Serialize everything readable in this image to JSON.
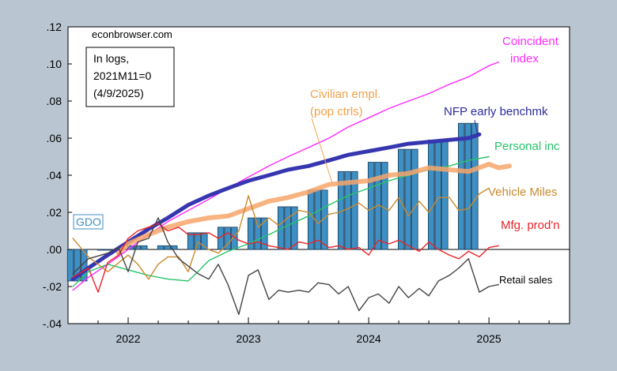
{
  "chart_data": {
    "type": "line",
    "source_label": "econbrowser.com",
    "note_lines": [
      "In logs,",
      "2021M11=0",
      "(4/9/2025)"
    ],
    "y_ticks": [
      ".12",
      ".10",
      ".08",
      ".06",
      ".04",
      ".02",
      ".00",
      "-.02",
      "-.04"
    ],
    "ylim": [
      -0.04,
      0.12
    ],
    "x_ticks": [
      "2022",
      "2023",
      "2024",
      "2025"
    ],
    "x_tick_values": [
      2022,
      2023,
      2024,
      2025
    ],
    "xlim": [
      2021.5,
      2025.67
    ],
    "series": [
      {
        "name": "Coincident index",
        "label_lines": [
          "Coincident",
          "index"
        ],
        "color": "#ff2bff",
        "style": "line",
        "x": [
          2021.54,
          2021.67,
          2021.83,
          2022.0,
          2022.17,
          2022.33,
          2022.5,
          2022.67,
          2022.83,
          2023.0,
          2023.17,
          2023.33,
          2023.5,
          2023.67,
          2023.83,
          2024.0,
          2024.17,
          2024.33,
          2024.5,
          2024.67,
          2024.83,
          2025.0,
          2025.08
        ],
        "values": [
          -0.022,
          -0.015,
          -0.008,
          0.0,
          0.008,
          0.015,
          0.021,
          0.027,
          0.033,
          0.039,
          0.045,
          0.05,
          0.055,
          0.06,
          0.066,
          0.071,
          0.076,
          0.08,
          0.084,
          0.089,
          0.093,
          0.099,
          0.101
        ]
      },
      {
        "name": "NFP early benchmk",
        "label_lines": [
          "NFP early benchmk"
        ],
        "color": "#3636b0",
        "style": "thick",
        "x": [
          2021.54,
          2021.67,
          2021.83,
          2022.0,
          2022.17,
          2022.33,
          2022.5,
          2022.67,
          2022.83,
          2023.0,
          2023.17,
          2023.33,
          2023.5,
          2023.67,
          2023.83,
          2024.0,
          2024.17,
          2024.33,
          2024.5,
          2024.67,
          2024.83,
          2024.92
        ],
        "values": [
          -0.016,
          -0.01,
          -0.003,
          0.004,
          0.011,
          0.017,
          0.024,
          0.029,
          0.033,
          0.037,
          0.04,
          0.043,
          0.045,
          0.048,
          0.051,
          0.053,
          0.055,
          0.057,
          0.058,
          0.059,
          0.06,
          0.062
        ]
      },
      {
        "name": "Personal inc",
        "label_lines": [
          "Personal inc"
        ],
        "color": "#27c46a",
        "style": "line",
        "x": [
          2021.54,
          2021.67,
          2021.83,
          2022.0,
          2022.17,
          2022.33,
          2022.5,
          2022.58,
          2022.67,
          2022.83,
          2023.0,
          2023.17,
          2023.33,
          2023.5,
          2023.67,
          2023.83,
          2024.0,
          2024.17,
          2024.33,
          2024.5,
          2024.67,
          2024.83,
          2025.0
        ],
        "values": [
          -0.02,
          -0.012,
          -0.008,
          -0.011,
          -0.014,
          -0.016,
          -0.017,
          -0.012,
          -0.006,
          -0.001,
          0.003,
          0.008,
          0.013,
          0.018,
          0.024,
          0.029,
          0.033,
          0.037,
          0.04,
          0.043,
          0.045,
          0.048,
          0.05
        ]
      },
      {
        "name": "Civilian empl. (pop ctrls)",
        "label_lines": [
          "Civilian empl.",
          "(pop ctrls)"
        ],
        "color": "#f7a66b",
        "style": "band",
        "x": [
          2021.92,
          2022.0,
          2022.17,
          2022.33,
          2022.5,
          2022.67,
          2022.83,
          2023.0,
          2023.17,
          2023.33,
          2023.5,
          2023.67,
          2023.83,
          2024.0,
          2024.17,
          2024.33,
          2024.5,
          2024.67,
          2024.83,
          2025.0,
          2025.08,
          2025.17
        ],
        "values": [
          -0.002,
          0.003,
          0.008,
          0.012,
          0.015,
          0.017,
          0.018,
          0.022,
          0.026,
          0.028,
          0.031,
          0.035,
          0.036,
          0.037,
          0.04,
          0.041,
          0.044,
          0.043,
          0.042,
          0.046,
          0.044,
          0.045
        ]
      },
      {
        "name": "Vehicle Miles",
        "label_lines": [
          "Vehicle Miles"
        ],
        "color": "#c98a2e",
        "style": "line",
        "x": [
          2021.54,
          2021.67,
          2021.83,
          2022.0,
          2022.08,
          2022.17,
          2022.25,
          2022.33,
          2022.42,
          2022.5,
          2022.58,
          2022.67,
          2022.75,
          2022.83,
          2022.92,
          2023.0,
          2023.08,
          2023.17,
          2023.25,
          2023.33,
          2023.42,
          2023.5,
          2023.58,
          2023.67,
          2023.75,
          2023.83,
          2023.92,
          2024.0,
          2024.08,
          2024.17,
          2024.25,
          2024.33,
          2024.42,
          2024.5,
          2024.58,
          2024.67,
          2024.75,
          2024.83,
          2024.92,
          2025.0
        ],
        "values": [
          0.006,
          -0.004,
          -0.012,
          -0.003,
          -0.008,
          -0.016,
          -0.008,
          -0.004,
          -0.004,
          -0.012,
          0.004,
          0.0,
          -0.002,
          0.003,
          0.01,
          0.029,
          0.012,
          0.017,
          0.013,
          0.017,
          0.021,
          0.02,
          0.014,
          0.019,
          0.02,
          0.022,
          0.025,
          0.021,
          0.024,
          0.021,
          0.028,
          0.018,
          0.026,
          0.02,
          0.028,
          0.028,
          0.021,
          0.022,
          0.03,
          0.033
        ]
      },
      {
        "name": "Mfg. prod'n",
        "label_lines": [
          "Mfg. prod'n"
        ],
        "color": "#e8262a",
        "style": "line",
        "x": [
          2021.54,
          2021.67,
          2021.75,
          2021.83,
          2021.92,
          2022.0,
          2022.08,
          2022.17,
          2022.25,
          2022.33,
          2022.42,
          2022.5,
          2022.58,
          2022.67,
          2022.75,
          2022.83,
          2022.92,
          2023.0,
          2023.08,
          2023.17,
          2023.25,
          2023.33,
          2023.42,
          2023.5,
          2023.58,
          2023.67,
          2023.75,
          2023.83,
          2023.92,
          2024.0,
          2024.08,
          2024.17,
          2024.25,
          2024.33,
          2024.42,
          2024.5,
          2024.58,
          2024.67,
          2024.75,
          2024.83,
          2024.92,
          2025.0,
          2025.08
        ],
        "values": [
          -0.015,
          -0.01,
          -0.023,
          -0.007,
          -0.003,
          0.006,
          0.01,
          0.012,
          0.014,
          0.01,
          0.012,
          0.008,
          0.008,
          0.009,
          0.006,
          0.009,
          0.005,
          0.003,
          0.004,
          0.002,
          0.001,
          0.0,
          0.004,
          0.003,
          0.005,
          0.001,
          0.002,
          0.0,
          0.001,
          -0.003,
          0.005,
          0.003,
          0.005,
          0.002,
          -0.001,
          0.004,
          0.0,
          -0.003,
          -0.005,
          -0.001,
          -0.004,
          0.001,
          0.002
        ]
      },
      {
        "name": "Retail sales",
        "label_lines": [
          "Retail sales"
        ],
        "color": "#444444",
        "style": "line",
        "x": [
          2021.54,
          2021.67,
          2021.83,
          2021.92,
          2022.0,
          2022.08,
          2022.17,
          2022.25,
          2022.33,
          2022.42,
          2022.5,
          2022.58,
          2022.67,
          2022.75,
          2022.83,
          2022.92,
          2023.0,
          2023.08,
          2023.17,
          2023.25,
          2023.33,
          2023.42,
          2023.5,
          2023.58,
          2023.67,
          2023.75,
          2023.83,
          2023.92,
          2024.0,
          2024.08,
          2024.17,
          2024.25,
          2024.33,
          2024.42,
          2024.5,
          2024.58,
          2024.67,
          2024.75,
          2024.83,
          2024.92,
          2025.0,
          2025.08
        ],
        "values": [
          -0.013,
          -0.005,
          -0.002,
          0.001,
          -0.012,
          0.004,
          0.006,
          0.017,
          0.004,
          -0.005,
          -0.009,
          -0.013,
          -0.016,
          -0.008,
          -0.019,
          -0.035,
          -0.014,
          -0.011,
          -0.027,
          -0.022,
          -0.023,
          -0.022,
          -0.023,
          -0.018,
          -0.019,
          -0.024,
          -0.02,
          -0.033,
          -0.026,
          -0.024,
          -0.029,
          -0.02,
          -0.026,
          -0.021,
          -0.025,
          -0.017,
          -0.014,
          -0.01,
          -0.005,
          -0.023,
          -0.02,
          -0.019
        ]
      },
      {
        "name": "GDO",
        "label_lines": [
          "GDO"
        ],
        "color": "#3d8fc4",
        "style": "bar",
        "x": [
          2021.58,
          2021.83,
          2022.08,
          2022.33,
          2022.58,
          2022.83,
          2023.08,
          2023.33,
          2023.58,
          2023.83,
          2024.08,
          2024.33,
          2024.58,
          2024.83
        ],
        "values": [
          -0.017,
          0.0,
          0.002,
          0.002,
          0.009,
          0.012,
          0.017,
          0.023,
          0.032,
          0.042,
          0.047,
          0.054,
          0.059,
          0.068
        ]
      }
    ]
  }
}
